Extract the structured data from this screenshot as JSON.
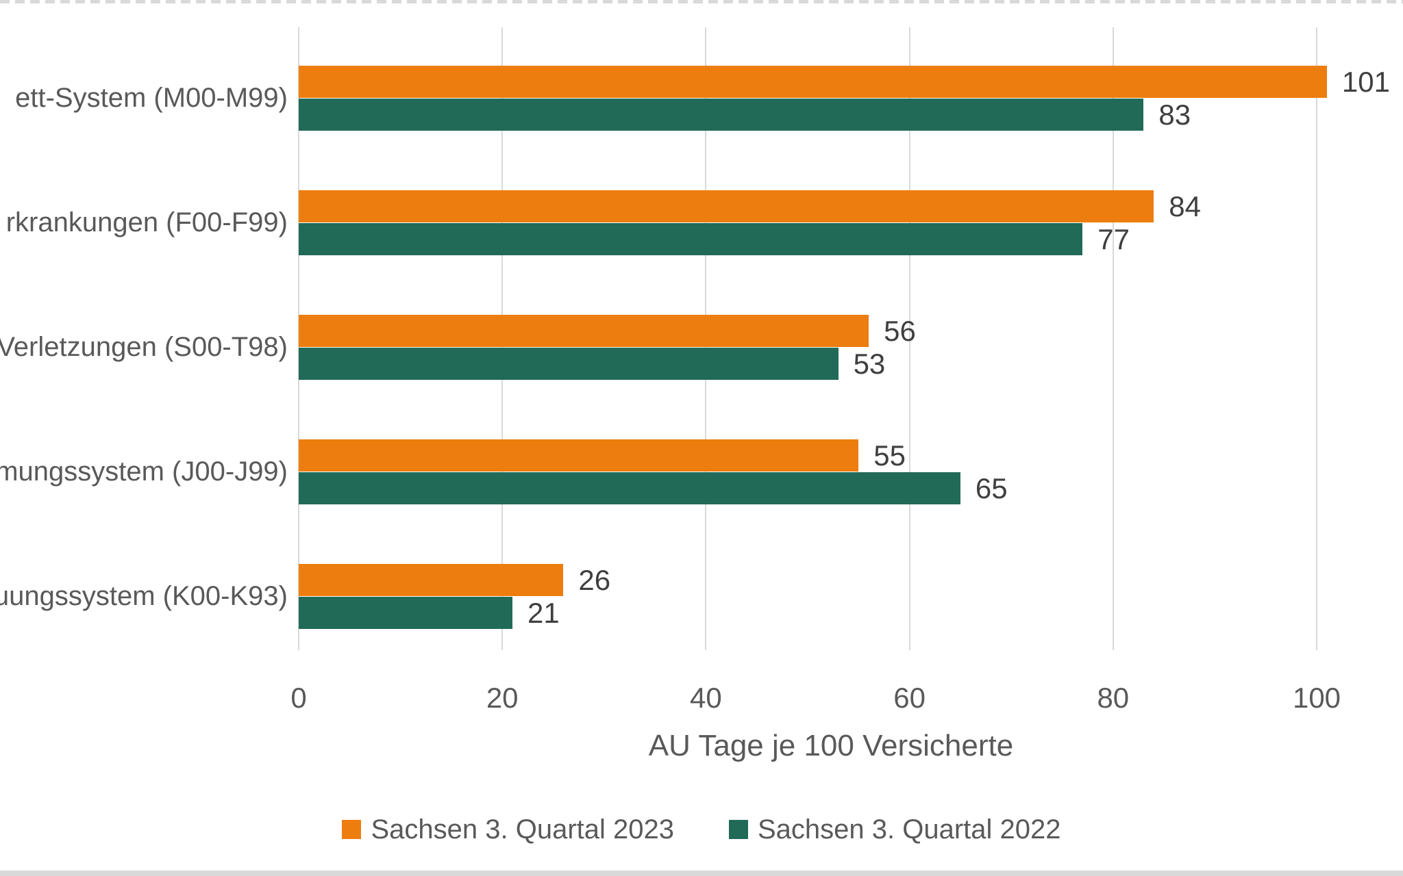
{
  "chart_data": {
    "type": "bar",
    "orientation": "horizontal",
    "categories": [
      "ett-System (M00-M99)",
      "rkrankungen (F00-F99)",
      "Verletzungen (S00-T98)",
      "mungssystem (J00-J99)",
      "uungssystem (K00-K93)"
    ],
    "series": [
      {
        "name": "Sachsen 3. Quartal 2023",
        "color": "#ED7D0E",
        "values": [
          101,
          84,
          56,
          55,
          26
        ]
      },
      {
        "name": "Sachsen 3. Quartal 2022",
        "color": "#216A58",
        "values": [
          83,
          77,
          53,
          65,
          21
        ]
      }
    ],
    "data_labels": {
      "series_2023": [
        "101",
        "84",
        "56",
        "55",
        "26"
      ],
      "series_2022": [
        "83",
        "77",
        "53",
        "65",
        "21"
      ]
    },
    "xlabel": "AU Tage je 100 Versicherte",
    "x_ticks": [
      "0",
      "20",
      "40",
      "60",
      "80",
      "100"
    ],
    "xlim": [
      0,
      108
    ],
    "grid": true,
    "legend_position": "bottom"
  },
  "colors": {
    "bar_2023": "#ED7D0E",
    "bar_2022": "#216A58",
    "text_gray": "#595959",
    "value_text": "#3f3f3f",
    "gridline": "#d9d9d9",
    "background": "#ffffff"
  }
}
